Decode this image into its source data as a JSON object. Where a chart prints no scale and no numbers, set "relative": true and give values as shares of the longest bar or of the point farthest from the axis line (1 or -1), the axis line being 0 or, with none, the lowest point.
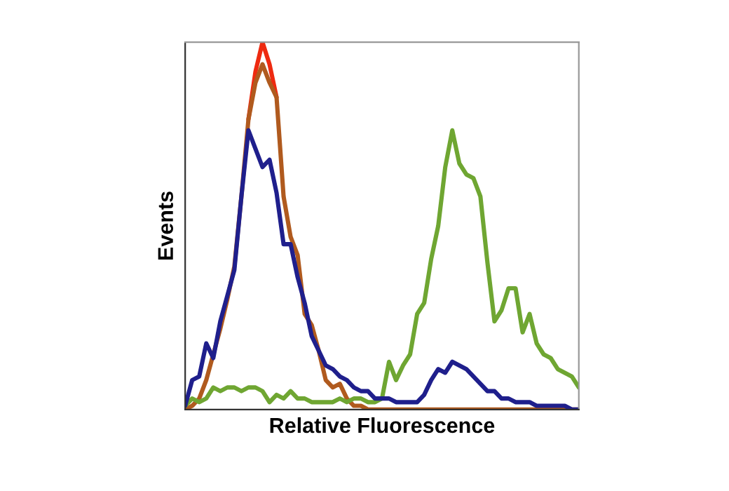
{
  "chart_data": {
    "type": "line",
    "xlabel": "Relative Fluorescence",
    "ylabel": "Events",
    "relative": true,
    "tick_labels": false,
    "categories": [
      null,
      null,
      null,
      null,
      null,
      null,
      null,
      null,
      null,
      null,
      null,
      null,
      null,
      null,
      null,
      null,
      null,
      null,
      null,
      null,
      null,
      null,
      null,
      null,
      null,
      null,
      null,
      null,
      null,
      null,
      null,
      null,
      null,
      null,
      null,
      null,
      null,
      null,
      null,
      null,
      null,
      null,
      null,
      null,
      null,
      null,
      null,
      null,
      null,
      null,
      null,
      null,
      null,
      null,
      null,
      null,
      null
    ],
    "series": [
      {
        "color": "#ee2a10",
        "values": [
          null,
          null,
          null,
          null,
          null,
          null,
          null,
          null,
          null,
          0.79,
          0.92,
          1.0,
          0.94,
          0.85,
          null,
          null,
          null,
          null,
          null,
          null,
          null,
          null,
          null,
          null,
          null,
          null,
          null,
          null,
          null,
          null,
          null,
          null,
          null,
          null,
          null,
          null,
          null,
          null,
          null,
          null,
          null,
          null,
          null,
          null,
          null,
          null,
          null,
          null,
          null,
          null,
          null,
          null,
          null,
          null,
          null,
          null,
          null
        ]
      },
      {
        "color": "#b05a1e",
        "values": [
          0.0,
          0.01,
          0.03,
          0.08,
          0.15,
          0.22,
          0.3,
          0.39,
          0.58,
          0.79,
          0.89,
          0.94,
          0.89,
          0.85,
          0.58,
          0.47,
          0.42,
          0.26,
          0.23,
          0.16,
          0.08,
          0.06,
          0.07,
          0.03,
          0.01,
          0.01,
          0,
          0,
          0,
          0,
          0,
          0,
          0,
          0,
          0,
          0,
          0,
          0,
          0,
          0,
          0,
          0,
          0,
          0,
          0,
          0,
          0,
          0,
          0,
          0,
          0,
          0,
          0,
          0,
          0,
          0,
          0
        ]
      },
      {
        "color": "#6fa632",
        "values": [
          0.01,
          0.03,
          0.02,
          0.03,
          0.06,
          0.05,
          0.06,
          0.06,
          0.05,
          0.06,
          0.06,
          0.05,
          0.02,
          0.04,
          0.03,
          0.05,
          0.03,
          0.03,
          0.02,
          0.02,
          0.02,
          0.02,
          0.03,
          0.02,
          0.03,
          0.03,
          0.02,
          0.02,
          0.03,
          0.13,
          0.08,
          0.12,
          0.15,
          0.26,
          0.29,
          0.41,
          0.5,
          0.66,
          0.76,
          0.67,
          0.64,
          0.63,
          0.58,
          0.4,
          0.24,
          0.27,
          0.33,
          0.33,
          0.21,
          0.26,
          0.18,
          0.15,
          0.14,
          0.11,
          0.1,
          0.09,
          0.06
        ]
      },
      {
        "color": "#1f1f8c",
        "values": [
          0.01,
          0.08,
          0.09,
          0.18,
          0.14,
          0.24,
          0.31,
          0.38,
          0.58,
          0.76,
          0.71,
          0.66,
          0.68,
          0.59,
          0.45,
          0.45,
          0.36,
          0.29,
          0.2,
          0.16,
          0.12,
          0.11,
          0.09,
          0.08,
          0.06,
          0.05,
          0.05,
          0.03,
          0.03,
          0.03,
          0.02,
          0.02,
          0.02,
          0.02,
          0.04,
          0.08,
          0.11,
          0.1,
          0.13,
          0.12,
          0.11,
          0.09,
          0.07,
          0.05,
          0.05,
          0.03,
          0.03,
          0.02,
          0.02,
          0.02,
          0.01,
          0.01,
          0.01,
          0.01,
          0.01,
          0.0,
          0.0
        ]
      }
    ]
  }
}
